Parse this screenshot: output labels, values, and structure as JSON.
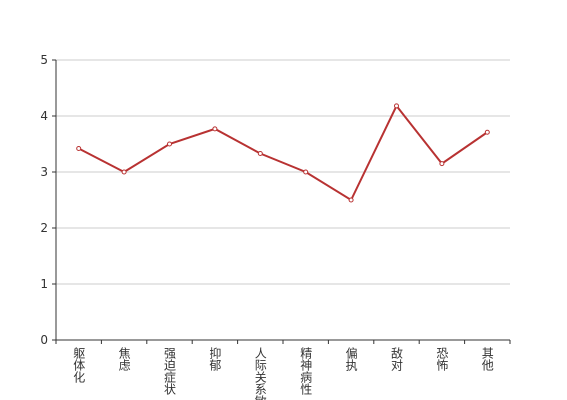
{
  "chart_data": {
    "type": "line",
    "categories": [
      "躯体化",
      "焦虑",
      "强迫症状",
      "抑郁",
      "人际关系敏感",
      "精神病性",
      "偏执",
      "敌对",
      "恐怖",
      "其他"
    ],
    "series": [
      {
        "color": "#b83232",
        "values": [
          3.42,
          3.0,
          3.5,
          3.77,
          3.33,
          3.0,
          2.5,
          4.18,
          3.15,
          3.71
        ]
      }
    ],
    "ylim": [
      0,
      5
    ],
    "yticks": [
      0,
      1,
      2,
      3,
      4,
      5
    ],
    "grid": true
  }
}
